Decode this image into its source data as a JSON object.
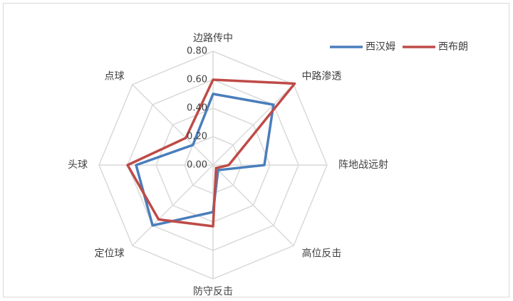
{
  "chart_data": {
    "type": "radar",
    "categories": [
      "边路传中",
      "中路渗透",
      "阵地战远射",
      "高位反击",
      "防守反击",
      "定位球",
      "头球",
      "点球"
    ],
    "series": [
      {
        "name": "西汉姆",
        "color": "#4a7ebb",
        "values": [
          0.5,
          0.6,
          0.36,
          0.05,
          0.33,
          0.6,
          0.54,
          0.2
        ]
      },
      {
        "name": "西布朗",
        "color": "#be4b48",
        "values": [
          0.6,
          0.81,
          0.11,
          0.03,
          0.43,
          0.54,
          0.6,
          0.27
        ]
      }
    ],
    "ylim": [
      0,
      0.8
    ],
    "yticks": [
      {
        "value": 0,
        "label": "0.00"
      },
      {
        "value": 0.2,
        "label": "0.20"
      },
      {
        "value": 0.4,
        "label": "0.40"
      },
      {
        "value": 0.6,
        "label": "0.60"
      },
      {
        "value": 0.8,
        "label": "0.80"
      }
    ],
    "grid": true,
    "legend": "top-right"
  }
}
